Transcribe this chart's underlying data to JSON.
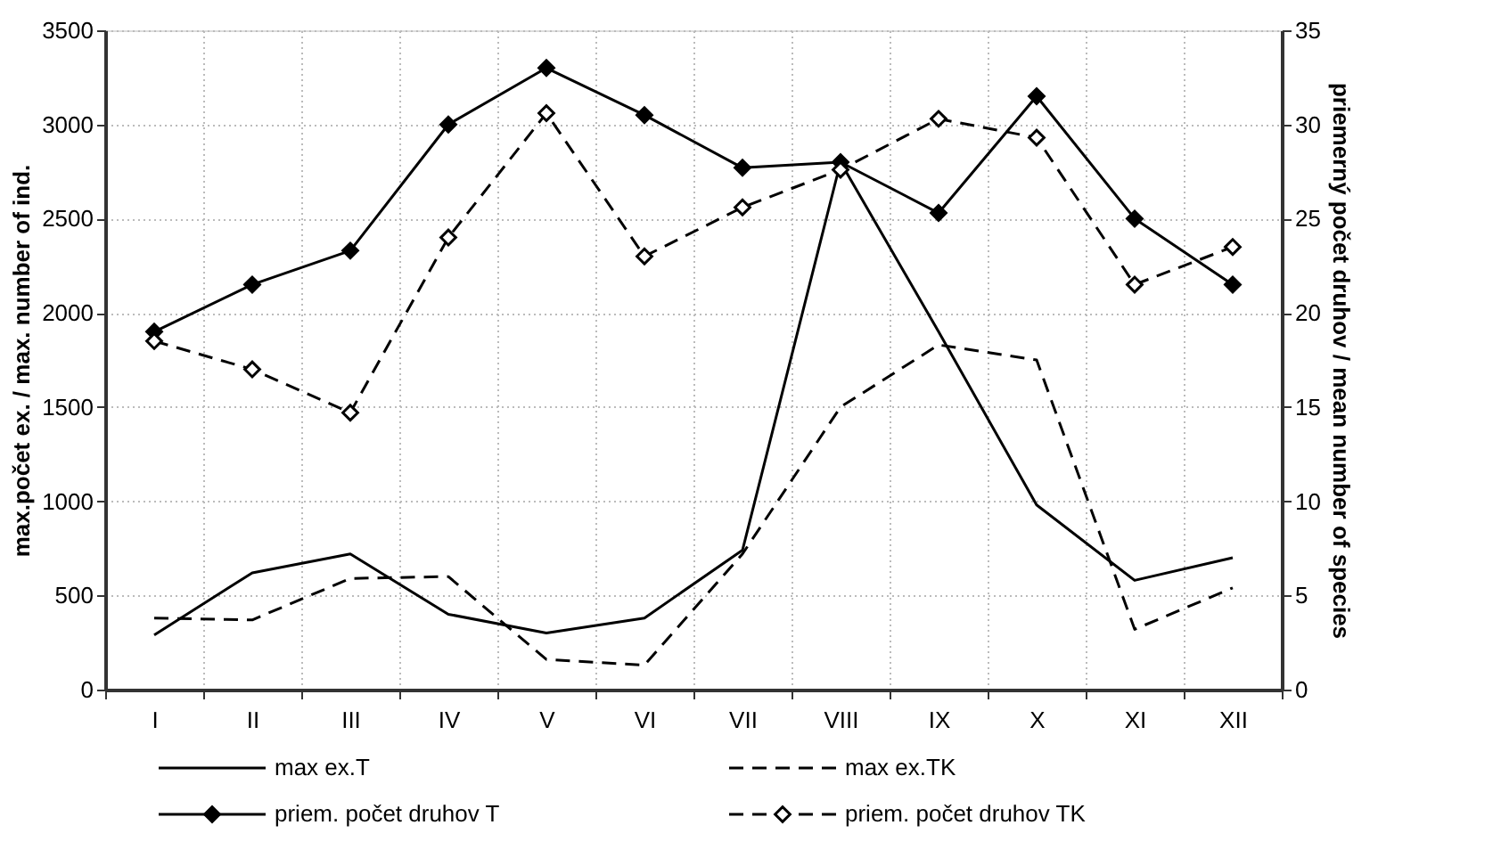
{
  "chart_data": {
    "type": "line",
    "categories": [
      "I",
      "II",
      "III",
      "IV",
      "V",
      "VI",
      "VII",
      "VIII",
      "IX",
      "X",
      "XI",
      "XII"
    ],
    "ylabel": "max.počet ex. / max. number of ind.",
    "y2label": "priemerný počet druhov / mean number of species",
    "ylim": [
      0,
      3500
    ],
    "yticks": [
      0,
      500,
      1000,
      1500,
      2000,
      2500,
      3000,
      3500
    ],
    "y2lim": [
      0,
      35
    ],
    "y2ticks": [
      0,
      5,
      10,
      15,
      20,
      25,
      30,
      35
    ],
    "grid": true,
    "legend": "bottom",
    "series": [
      {
        "name": "max ex.T",
        "color": "#000000",
        "line_style": "solid",
        "marker": "none",
        "values": [
          290,
          620,
          720,
          400,
          300,
          380,
          740,
          2800,
          1900,
          980,
          580,
          700
        ]
      },
      {
        "name": "max ex.TK",
        "color": "#000000",
        "line_style": "dashed",
        "marker": "none",
        "values": [
          380,
          370,
          590,
          600,
          160,
          130,
          720,
          1500,
          1830,
          1750,
          320,
          540
        ]
      },
      {
        "name": "priem.  počet druhov T",
        "color": "#000000",
        "line_style": "solid",
        "marker": "diamond",
        "axis": "y2",
        "values": [
          19,
          21.5,
          23.3,
          30,
          33,
          30.5,
          27.7,
          28,
          25.3,
          31.5,
          25,
          21.5
        ]
      },
      {
        "name": "priem.  počet druhov TK",
        "color": "#000000",
        "line_style": "dashed",
        "marker": "diamond",
        "axis": "y2",
        "values": [
          18.5,
          17,
          14.7,
          24,
          30.6,
          23,
          25.6,
          27.6,
          30.3,
          29.3,
          21.5,
          23.5
        ]
      }
    ]
  }
}
